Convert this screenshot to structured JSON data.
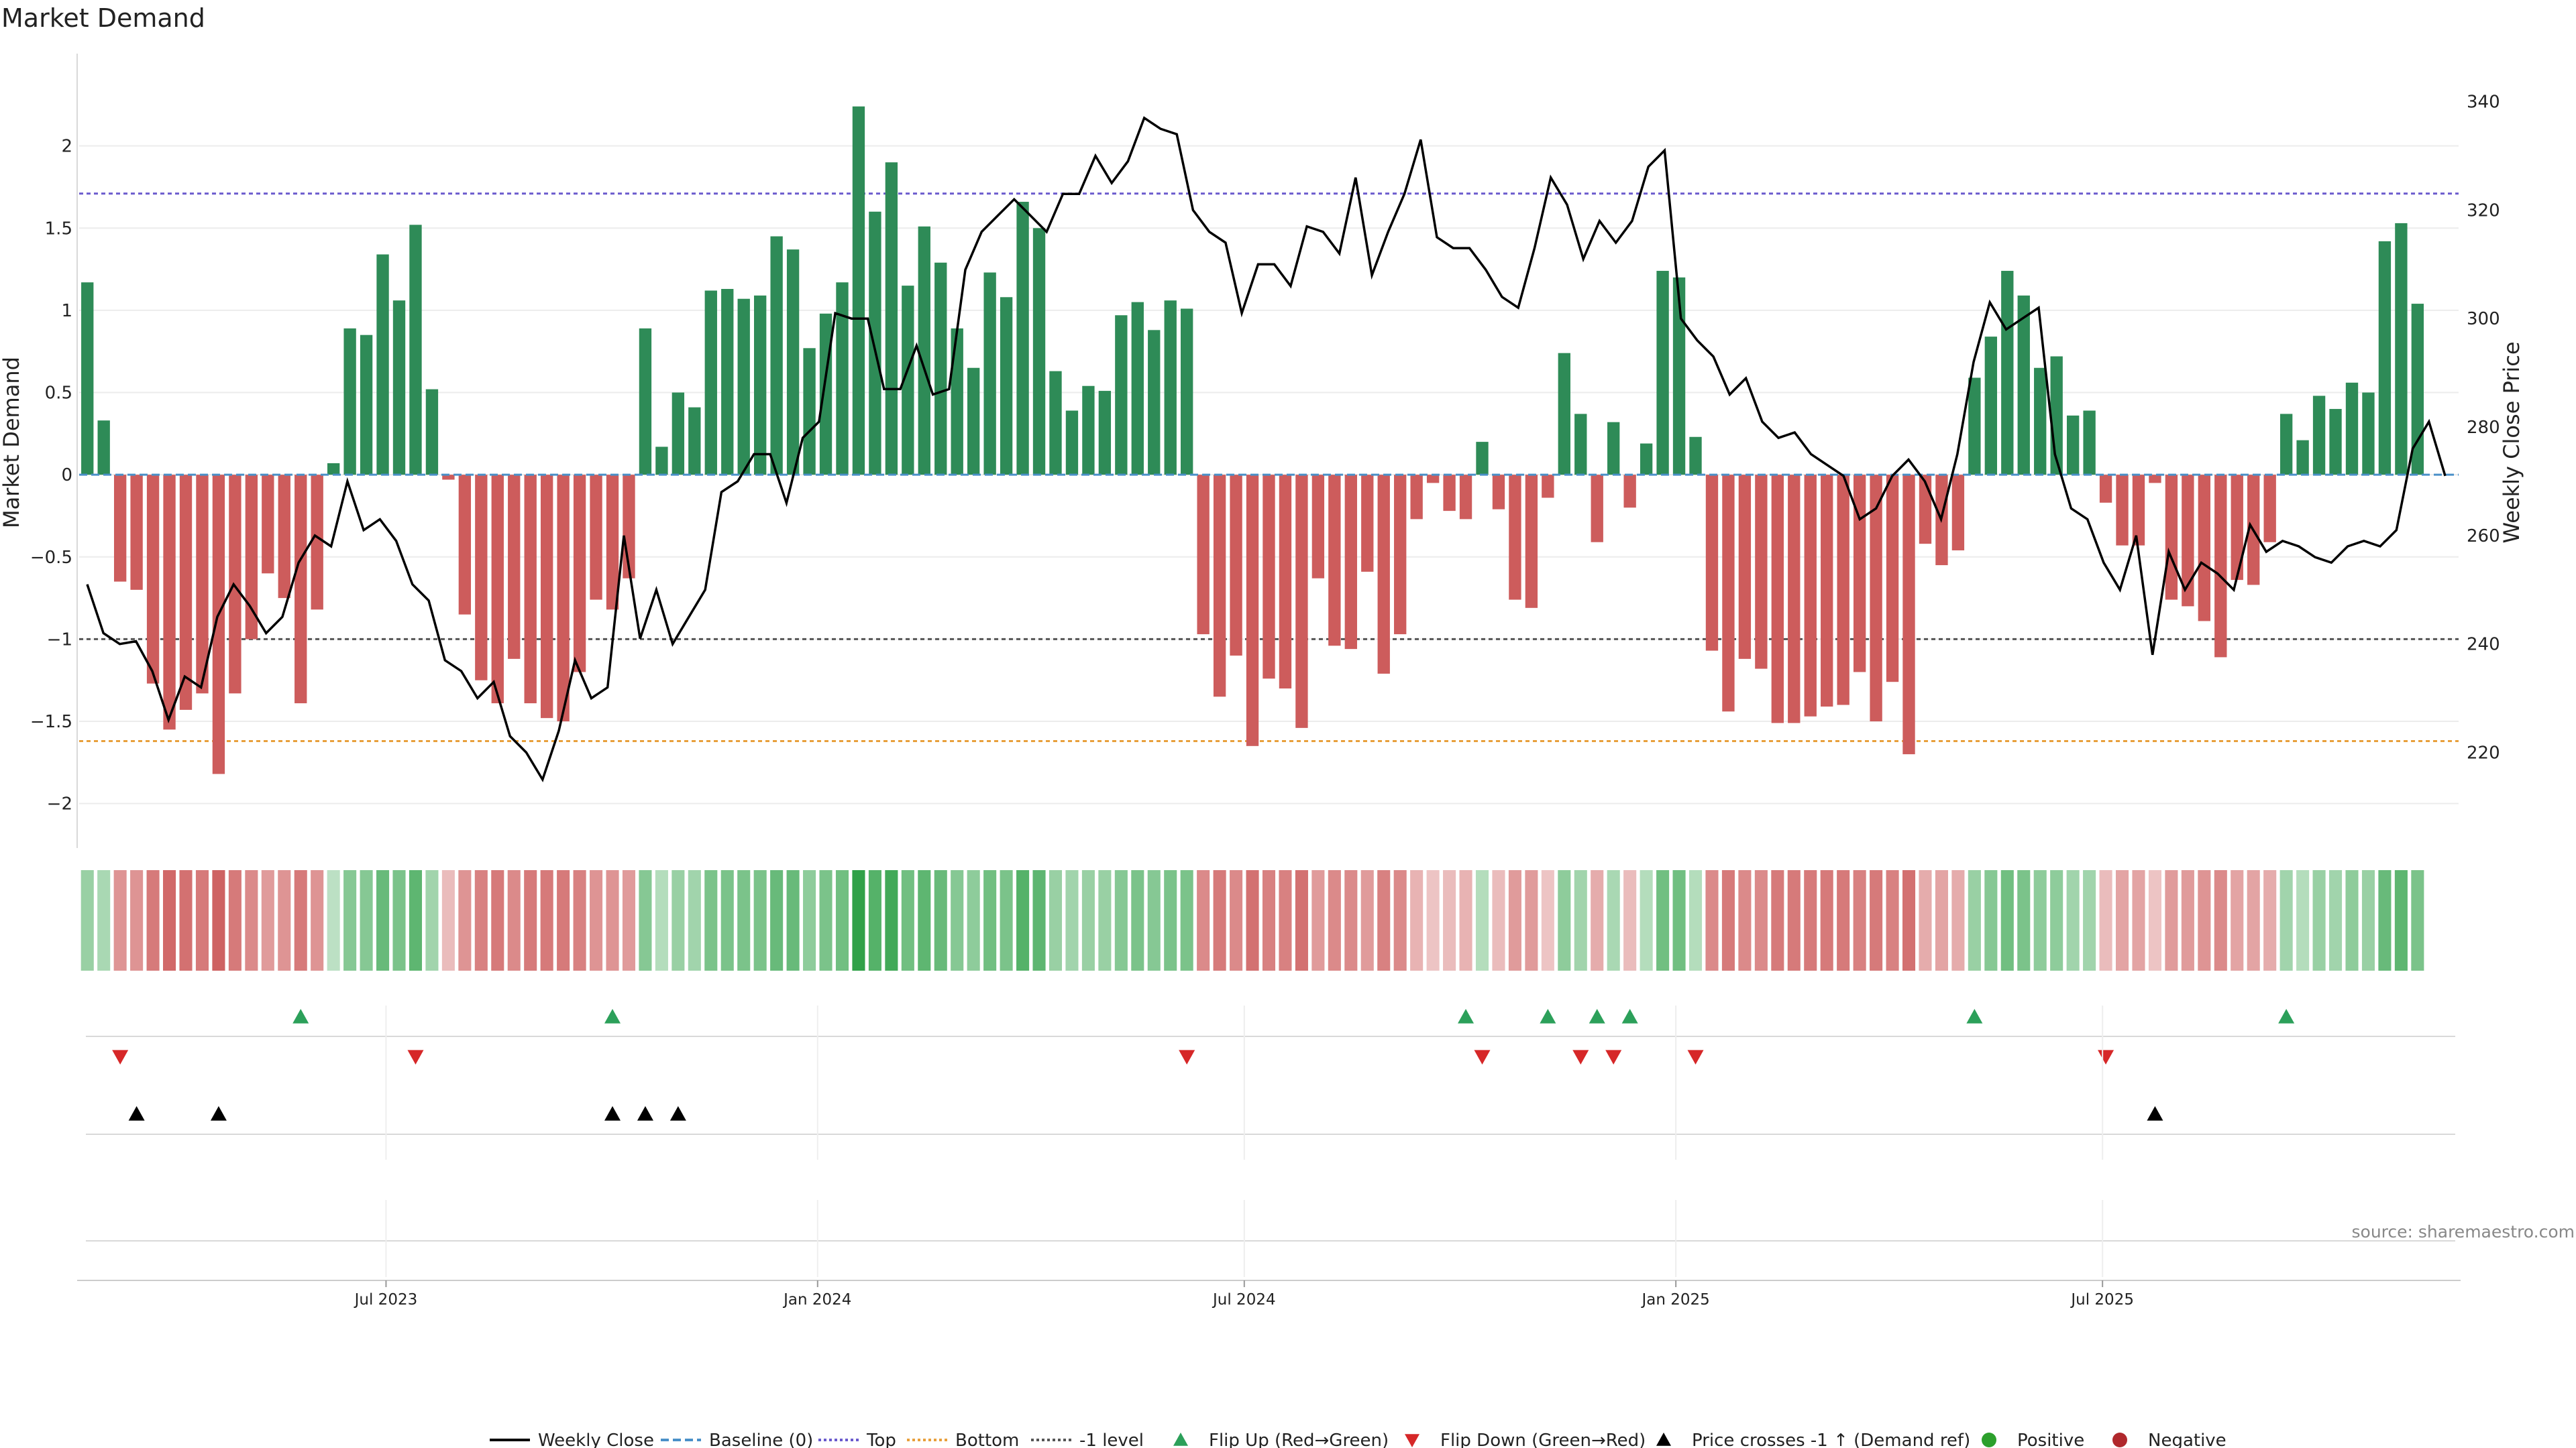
{
  "chart_data": {
    "type": "bar",
    "title": "Market Demand",
    "ylabel_left": "Market Demand",
    "ylabel_right": "Weekly Close Price",
    "ylim_left": [
      -2.25,
      2.5
    ],
    "ylim_right": [
      203,
      347
    ],
    "yticks_left": [
      -2,
      -1.5,
      -1,
      -0.5,
      0,
      0.5,
      1,
      1.5,
      2
    ],
    "yticks_right": [
      220,
      240,
      260,
      280,
      300,
      320,
      340
    ],
    "ytick_labels_left": [
      "−2",
      "−1.5",
      "−1",
      "−0.5",
      "0",
      "0.5",
      "1",
      "1.5",
      "2"
    ],
    "ytick_labels_right": [
      "220",
      "240",
      "260",
      "280",
      "300",
      "320",
      "340"
    ],
    "reference_lines": [
      {
        "name": "Top",
        "value": 1.71,
        "color": "#6a5acd"
      },
      {
        "name": "-1 level",
        "value": -1.0,
        "color": "#555555"
      },
      {
        "name": "Bottom",
        "value": -1.62,
        "color": "#e8a03c"
      }
    ],
    "x_start": "2023-02-24",
    "week_count": 145,
    "x_ticks": [
      {
        "label": "Jul 2023",
        "week": 18.7
      },
      {
        "label": "Jan 2024",
        "week": 45.0
      },
      {
        "label": "Jul 2024",
        "week": 71.0
      },
      {
        "label": "Jan 2025",
        "week": 97.3
      },
      {
        "label": "Jul 2025",
        "week": 123.3
      }
    ],
    "demand": [
      1.17,
      0.33,
      -0.65,
      -0.7,
      -1.27,
      -1.55,
      -1.43,
      -1.33,
      -1.82,
      -1.33,
      -1.0,
      -0.6,
      -0.75,
      -1.39,
      -0.82,
      0.07,
      0.89,
      0.85,
      1.34,
      1.06,
      1.52,
      0.52,
      -0.03,
      -0.85,
      -1.25,
      -1.39,
      -1.12,
      -1.39,
      -1.48,
      -1.5,
      -1.2,
      -0.76,
      -0.82,
      -0.63,
      0.89,
      0.17,
      0.5,
      0.41,
      1.12,
      1.13,
      1.07,
      1.09,
      1.45,
      1.37,
      0.77,
      0.98,
      1.17,
      2.24,
      1.6,
      1.9,
      1.15,
      1.51,
      1.29,
      0.89,
      0.65,
      1.23,
      1.08,
      1.66,
      1.5,
      0.63,
      0.39,
      0.54,
      0.51,
      0.97,
      1.05,
      0.88,
      1.06,
      1.01,
      -0.97,
      -1.35,
      -1.1,
      -1.65,
      -1.24,
      -1.3,
      -1.54,
      -0.63,
      -1.04,
      -1.06,
      -0.59,
      -1.21,
      -0.97,
      -0.27,
      -0.05,
      -0.22,
      -0.27,
      0.2,
      -0.21,
      -0.76,
      -0.81,
      -0.14,
      0.74,
      0.37,
      -0.41,
      0.32,
      -0.2,
      0.19,
      1.24,
      1.2,
      0.23,
      -1.07,
      -1.44,
      -1.12,
      -1.18,
      -1.51,
      -1.51,
      -1.47,
      -1.41,
      -1.4,
      -1.2,
      -1.5,
      -1.26,
      -1.7,
      -0.42,
      -0.55,
      -0.46,
      0.59,
      0.84,
      1.24,
      1.09,
      0.65,
      0.72,
      0.36,
      0.39,
      -0.17,
      -0.43,
      -0.43,
      -0.05,
      -0.76,
      -0.8,
      -0.89,
      -1.11,
      -0.64,
      -0.67,
      -0.41,
      0.37,
      0.21,
      0.48,
      0.4,
      0.56,
      0.5,
      1.42,
      1.53,
      1.04
    ],
    "close": [
      251,
      242,
      240,
      240.5,
      235,
      226,
      234,
      232,
      245,
      251,
      247,
      242,
      245,
      255,
      260,
      258,
      270,
      261,
      263,
      259,
      251,
      248,
      237,
      235,
      230,
      233,
      223,
      220,
      215,
      224,
      237,
      230,
      232,
      260,
      241,
      250,
      240,
      245,
      250,
      268,
      270,
      275,
      275,
      266,
      278,
      281,
      301,
      300,
      300,
      287,
      287,
      295,
      286,
      287,
      309,
      316,
      319,
      322,
      319,
      316,
      323,
      323,
      330,
      325,
      329,
      337,
      335,
      334,
      320,
      316,
      314,
      301,
      310,
      310,
      306,
      317,
      316,
      312,
      326,
      308,
      316,
      323,
      333,
      315,
      313,
      313,
      309,
      304,
      302,
      313,
      326,
      321,
      311,
      318,
      314,
      318,
      328,
      331,
      300,
      296,
      293,
      286,
      289,
      281,
      278,
      279,
      275,
      273,
      271,
      263,
      265,
      271,
      274,
      270,
      263,
      275,
      292,
      303,
      298,
      300,
      302,
      275,
      265,
      263,
      255,
      250,
      260,
      238,
      257,
      250,
      255,
      253,
      250,
      262,
      257,
      259,
      258,
      256,
      255,
      258,
      259,
      258,
      261,
      276,
      281,
      271
    ],
    "heat_strip": [
      0.35,
      0.25,
      -0.45,
      -0.45,
      -0.6,
      -0.7,
      -0.65,
      -0.6,
      -0.75,
      -0.6,
      -0.5,
      -0.4,
      -0.45,
      -0.6,
      -0.45,
      0.15,
      0.45,
      0.45,
      0.6,
      0.5,
      0.65,
      0.3,
      -0.2,
      -0.45,
      -0.55,
      -0.6,
      -0.5,
      -0.6,
      -0.6,
      -0.6,
      -0.55,
      -0.45,
      -0.45,
      -0.4,
      0.45,
      0.2,
      0.35,
      0.3,
      0.5,
      0.5,
      0.5,
      0.5,
      0.6,
      0.6,
      0.4,
      0.5,
      0.55,
      0.9,
      0.7,
      0.8,
      0.55,
      0.65,
      0.6,
      0.45,
      0.4,
      0.55,
      0.5,
      0.7,
      0.65,
      0.35,
      0.3,
      0.35,
      0.35,
      0.45,
      0.5,
      0.45,
      0.5,
      0.5,
      -0.5,
      -0.6,
      -0.5,
      -0.65,
      -0.55,
      -0.55,
      -0.65,
      -0.4,
      -0.5,
      -0.5,
      -0.4,
      -0.55,
      -0.5,
      -0.25,
      -0.15,
      -0.2,
      -0.25,
      0.2,
      -0.2,
      -0.4,
      -0.4,
      -0.15,
      0.4,
      0.3,
      -0.3,
      0.25,
      -0.2,
      0.2,
      0.55,
      0.55,
      0.2,
      -0.5,
      -0.6,
      -0.5,
      -0.5,
      -0.6,
      -0.6,
      -0.6,
      -0.6,
      -0.6,
      -0.55,
      -0.6,
      -0.55,
      -0.65,
      -0.3,
      -0.35,
      -0.3,
      0.35,
      0.45,
      0.55,
      0.5,
      0.4,
      0.4,
      0.3,
      0.3,
      -0.2,
      -0.35,
      -0.35,
      -0.15,
      -0.4,
      -0.4,
      -0.45,
      -0.5,
      -0.35,
      -0.35,
      -0.3,
      0.3,
      0.2,
      0.35,
      0.3,
      0.4,
      0.35,
      0.6,
      0.65,
      0.5
    ],
    "flip_up_weeks": [
      13,
      32,
      84,
      89,
      92,
      94,
      115,
      134
    ],
    "flip_down_weeks": [
      2,
      20,
      67,
      85,
      91,
      93,
      98,
      123
    ],
    "cross_weeks": [
      3,
      8,
      32,
      34,
      36,
      126
    ],
    "legend": [
      {
        "label": "Weekly Close",
        "kind": "line",
        "color": "#000000",
        "dash": ""
      },
      {
        "label": "Baseline (0)",
        "kind": "line",
        "color": "#4a90c8",
        "dash": "12,6"
      },
      {
        "label": "Top",
        "kind": "line",
        "color": "#6a5acd",
        "dash": "4,4"
      },
      {
        "label": "Bottom",
        "kind": "line",
        "color": "#e8a03c",
        "dash": "4,4"
      },
      {
        "label": "-1 level",
        "kind": "line",
        "color": "#555555",
        "dash": "4,4"
      },
      {
        "label": "Flip Up (Red→Green)",
        "kind": "up",
        "color": "#2ca05a"
      },
      {
        "label": "Flip Down (Green→Red)",
        "kind": "down",
        "color": "#d62728"
      },
      {
        "label": "Price crosses -1 ↑ (Demand ref)",
        "kind": "up",
        "color": "#000000"
      },
      {
        "label": "Positive",
        "kind": "dot",
        "color": "#2ca02c"
      },
      {
        "label": "Negative",
        "kind": "dot",
        "color": "#b0282c"
      }
    ],
    "colors": {
      "positive_bar": "#2e8b57",
      "negative_bar": "#cd5c5c",
      "price_line": "#000000",
      "baseline": "#4a90c8"
    }
  },
  "source": "source: sharemaestro.com"
}
